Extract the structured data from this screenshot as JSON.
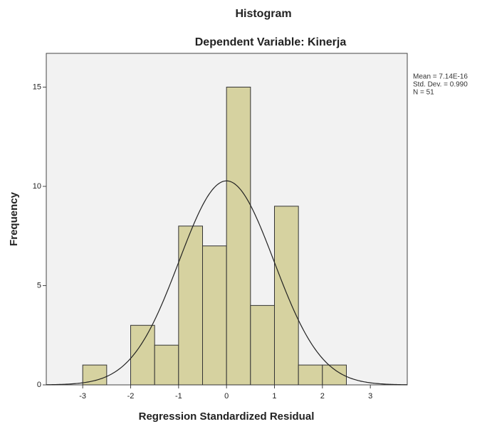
{
  "chart_data": {
    "type": "histogram",
    "title": "Histogram",
    "subtitle": "Dependent Variable: Kinerja",
    "x_label": "Regression Standardized Residual",
    "y_label": "Frequency",
    "bins": [
      -3,
      -2.5,
      -2,
      -1.5,
      -1,
      -0.5,
      0,
      0.5,
      1,
      1.5,
      2,
      2.5
    ],
    "values": [
      1,
      0,
      3,
      2,
      8,
      7,
      15,
      4,
      9,
      1,
      1
    ],
    "color": "#d6d2a0",
    "xlim": [
      -3.76,
      3.77
    ],
    "xticks": [
      -3,
      -2,
      -1,
      0,
      1,
      2,
      3
    ],
    "ylim": [
      0,
      16.7
    ],
    "yticks": [
      0,
      5,
      10,
      15
    ],
    "normal_curve": {
      "mean": 7.14e-16,
      "std": 0.99,
      "n": 51
    },
    "stats_labels": [
      "Mean = 7.14E-16",
      "Std. Dev. = 0.990",
      "N = 51"
    ]
  }
}
